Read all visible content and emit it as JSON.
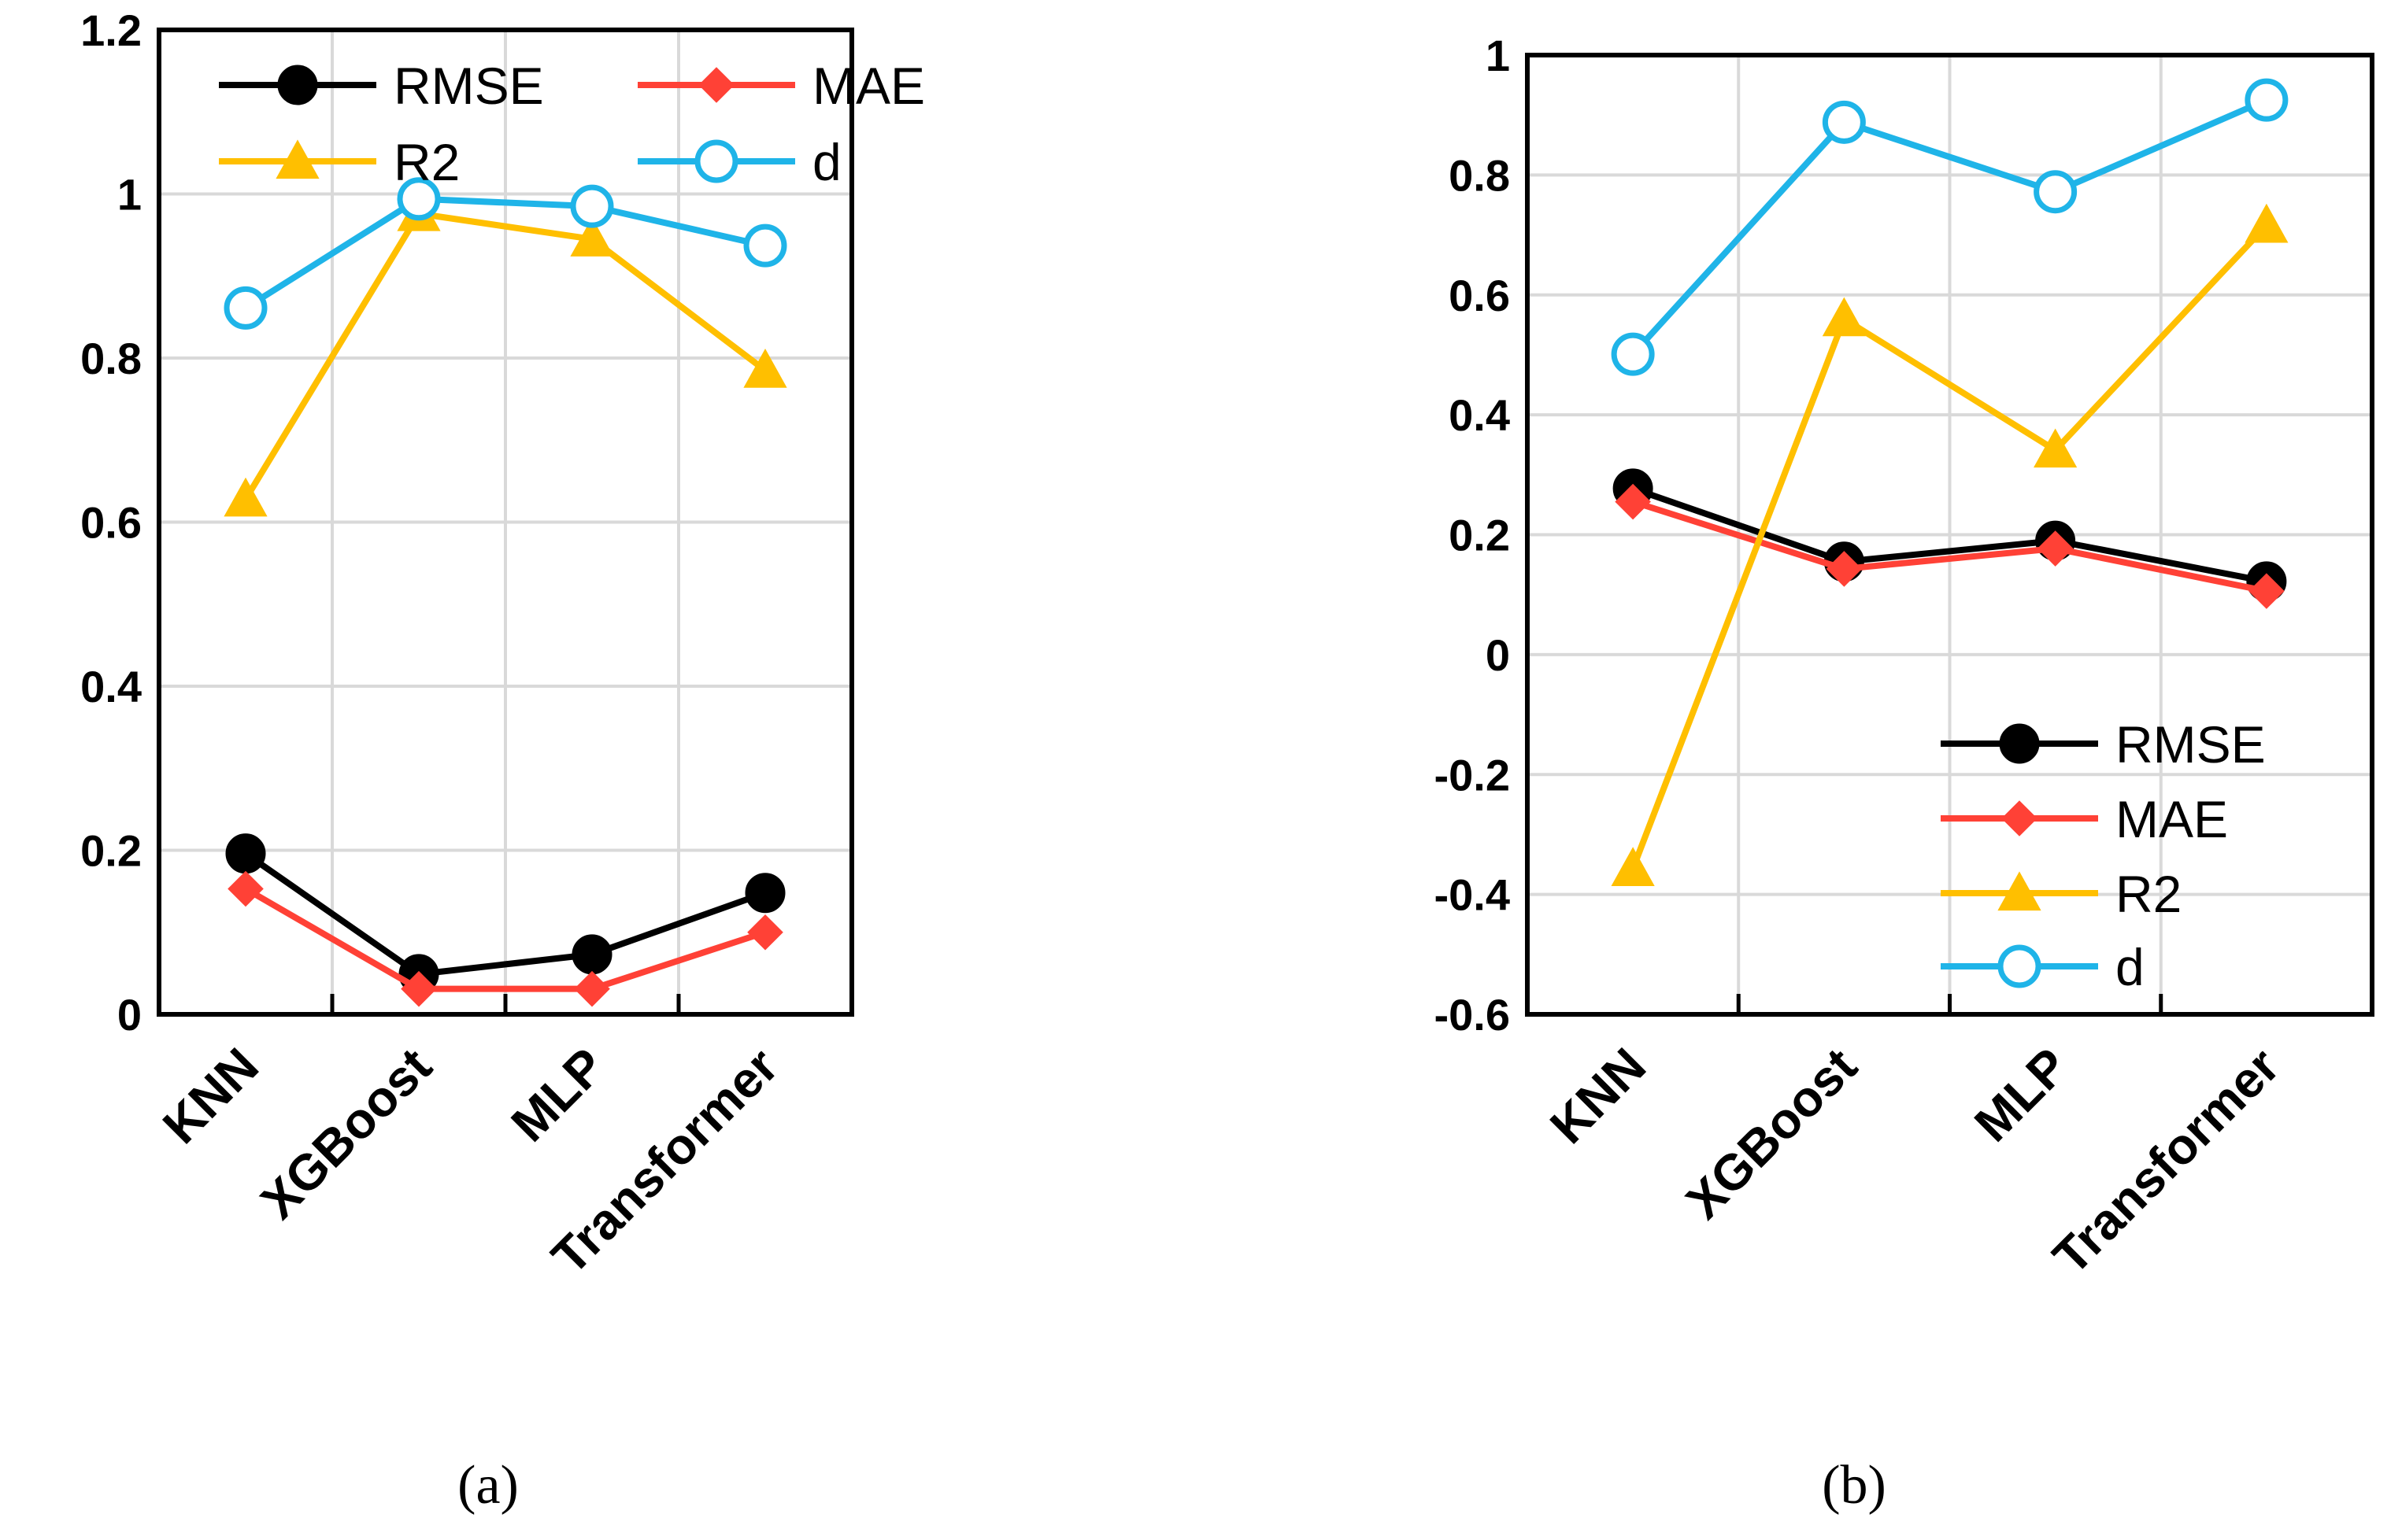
{
  "chart_data": [
    {
      "type": "line",
      "panel_label": "(a)",
      "categories": [
        "KNN",
        "XGBoost",
        "MLP",
        "Transformer"
      ],
      "y_ticks": [
        "0",
        "0.2",
        "0.4",
        "0.6",
        "0.8",
        "1",
        "1.2"
      ],
      "ylim": [
        0,
        1.2
      ],
      "grid": true,
      "legend_position": "top",
      "series": [
        {
          "name": "RMSE",
          "color": "#000000",
          "marker": "circle-filled",
          "values": [
            0.196,
            0.049,
            0.073,
            0.148
          ]
        },
        {
          "name": "MAE",
          "color": "#ff4136",
          "marker": "diamond",
          "values": [
            0.153,
            0.031,
            0.031,
            0.1
          ]
        },
        {
          "name": "R2",
          "color": "#ffbf00",
          "marker": "triangle",
          "values": [
            0.628,
            0.976,
            0.945,
            0.785
          ]
        },
        {
          "name": "d",
          "color": "#1fb4e8",
          "marker": "circle-open",
          "values": [
            0.861,
            0.994,
            0.985,
            0.937
          ]
        }
      ]
    },
    {
      "type": "line",
      "panel_label": "(b)",
      "categories": [
        "KNN",
        "XGBoost",
        "MLP",
        "Transformer"
      ],
      "y_ticks": [
        "-0.6",
        "-0.4",
        "-0.2",
        "0",
        "0.2",
        "0.4",
        "0.6",
        "0.8",
        "1"
      ],
      "ylim": [
        -0.6,
        1
      ],
      "grid": true,
      "legend_position": "bottom-right",
      "series": [
        {
          "name": "RMSE",
          "color": "#000000",
          "marker": "circle-filled",
          "values": [
            0.277,
            0.155,
            0.19,
            0.122
          ]
        },
        {
          "name": "MAE",
          "color": "#ff4136",
          "marker": "diamond",
          "values": [
            0.255,
            0.143,
            0.177,
            0.106
          ]
        },
        {
          "name": "R2",
          "color": "#ffbf00",
          "marker": "triangle",
          "values": [
            -0.357,
            0.56,
            0.341,
            0.716
          ]
        },
        {
          "name": "d",
          "color": "#1fb4e8",
          "marker": "circle-open",
          "values": [
            0.501,
            0.888,
            0.772,
            0.925
          ]
        }
      ]
    }
  ]
}
